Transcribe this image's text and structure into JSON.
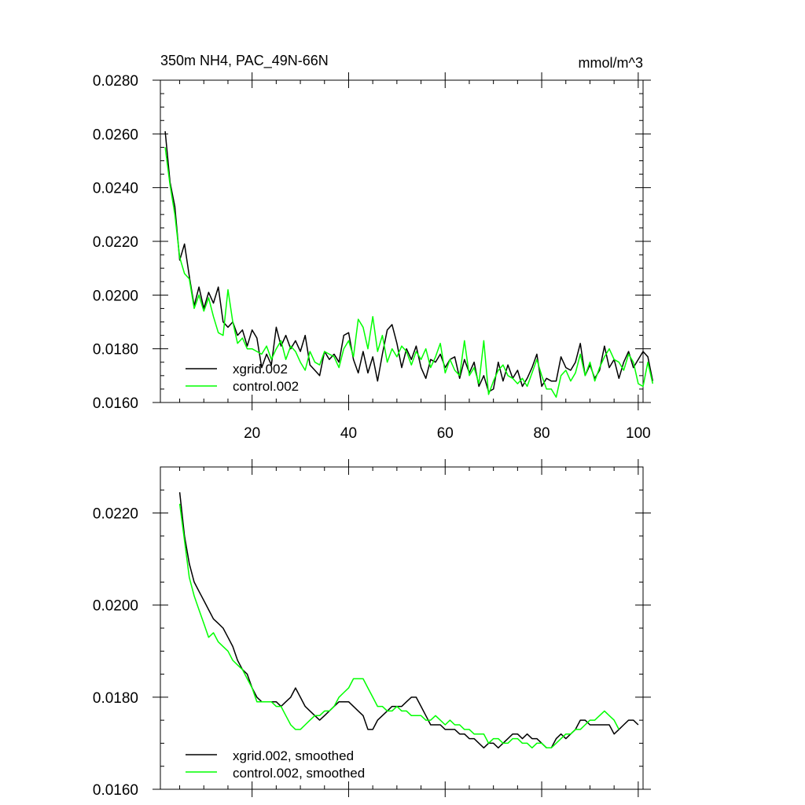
{
  "chart_data": [
    {
      "type": "line",
      "title_left": "350m NH4, PAC_49N-66N",
      "title_right": "mmol/m^3",
      "xlim": [
        1,
        101
      ],
      "ylim": [
        0.016,
        0.028
      ],
      "xticks": [
        20,
        40,
        60,
        80,
        100
      ],
      "xtick_labels": [
        "20",
        "40",
        "60",
        "80",
        "100"
      ],
      "yticks": [
        0.016,
        0.018,
        0.02,
        0.022,
        0.024,
        0.026,
        0.028
      ],
      "ytick_labels": [
        "0.0160",
        "0.0180",
        "0.0200",
        "0.0220",
        "0.0240",
        "0.0260",
        "0.0280"
      ],
      "legend_position": "bottom-left",
      "series": [
        {
          "name": "xgrid.002",
          "color": "#000000",
          "values": [
            0.0261,
            0.0242,
            0.0233,
            0.0213,
            0.0219,
            0.0207,
            0.0196,
            0.0203,
            0.0195,
            0.0201,
            0.0197,
            0.0203,
            0.019,
            0.0188,
            0.019,
            0.0185,
            0.0187,
            0.0181,
            0.0187,
            0.0184,
            0.0173,
            0.0178,
            0.0174,
            0.0188,
            0.0181,
            0.0185,
            0.018,
            0.0183,
            0.0179,
            0.0185,
            0.0174,
            0.0172,
            0.017,
            0.0179,
            0.0176,
            0.0178,
            0.0175,
            0.0185,
            0.0186,
            0.0176,
            0.0171,
            0.0179,
            0.0171,
            0.0177,
            0.0168,
            0.0178,
            0.0187,
            0.0189,
            0.0182,
            0.0173,
            0.018,
            0.0176,
            0.0181,
            0.0173,
            0.0169,
            0.0176,
            0.0175,
            0.0178,
            0.0173,
            0.0176,
            0.0177,
            0.0169,
            0.0176,
            0.0171,
            0.0175,
            0.0166,
            0.017,
            0.0164,
            0.0165,
            0.0175,
            0.0168,
            0.0174,
            0.0169,
            0.0172,
            0.0166,
            0.0169,
            0.0173,
            0.0178,
            0.0166,
            0.0169,
            0.0168,
            0.0168,
            0.0177,
            0.0173,
            0.0172,
            0.0175,
            0.0182,
            0.017,
            0.0174,
            0.0169,
            0.0172,
            0.0181,
            0.0173,
            0.0176,
            0.0169,
            0.0175,
            0.0179,
            0.0173,
            0.0176,
            0.0179,
            0.0177,
            0.0168
          ]
        },
        {
          "name": "control.002",
          "color": "#00ff00",
          "values": [
            0.0255,
            0.0241,
            0.023,
            0.0214,
            0.0208,
            0.0206,
            0.0195,
            0.02,
            0.0194,
            0.0199,
            0.0192,
            0.0186,
            0.0185,
            0.0202,
            0.019,
            0.0182,
            0.0184,
            0.018,
            0.018,
            0.0179,
            0.0178,
            0.0181,
            0.0176,
            0.018,
            0.0183,
            0.0176,
            0.0181,
            0.0179,
            0.0175,
            0.0172,
            0.0179,
            0.0175,
            0.0174,
            0.0179,
            0.0178,
            0.0177,
            0.0173,
            0.018,
            0.0183,
            0.0177,
            0.0191,
            0.0188,
            0.018,
            0.0192,
            0.0179,
            0.0185,
            0.0175,
            0.018,
            0.0177,
            0.0181,
            0.0179,
            0.0174,
            0.0179,
            0.0176,
            0.018,
            0.0173,
            0.0177,
            0.0182,
            0.0171,
            0.0176,
            0.0172,
            0.017,
            0.0183,
            0.017,
            0.0173,
            0.0167,
            0.0183,
            0.0163,
            0.0168,
            0.0172,
            0.0174,
            0.017,
            0.0169,
            0.0167,
            0.0169,
            0.0166,
            0.0171,
            0.0176,
            0.017,
            0.0165,
            0.0165,
            0.0162,
            0.017,
            0.0172,
            0.0168,
            0.0171,
            0.0178,
            0.017,
            0.0175,
            0.0168,
            0.0173,
            0.0177,
            0.018,
            0.0176,
            0.0175,
            0.0172,
            0.0178,
            0.0175,
            0.0167,
            0.0166,
            0.0175,
            0.0167
          ]
        }
      ]
    },
    {
      "type": "line",
      "xlim": [
        1,
        101
      ],
      "ylim": [
        0.016,
        0.023
      ],
      "xticks": [
        20,
        40,
        60,
        80,
        100
      ],
      "yticks": [
        0.016,
        0.018,
        0.02,
        0.022
      ],
      "ytick_labels": [
        "0.0160",
        "0.0180",
        "0.0200",
        "0.0220"
      ],
      "legend_position": "bottom-left",
      "series": [
        {
          "name": "xgrid.002, smoothed",
          "color": "#000000",
          "x_start": 5,
          "values": [
            0.02245,
            0.0215,
            0.0209,
            0.0205,
            0.0203,
            0.0201,
            0.0199,
            0.0197,
            0.0196,
            0.0195,
            0.0193,
            0.0191,
            0.0188,
            0.0186,
            0.0185,
            0.0182,
            0.018,
            0.0179,
            0.0179,
            0.0179,
            0.0179,
            0.0178,
            0.0179,
            0.018,
            0.0182,
            0.018,
            0.0178,
            0.0177,
            0.0176,
            0.0175,
            0.0176,
            0.0177,
            0.0178,
            0.0179,
            0.0179,
            0.0179,
            0.0178,
            0.0177,
            0.0176,
            0.0173,
            0.0173,
            0.0175,
            0.0176,
            0.0177,
            0.0178,
            0.0178,
            0.0178,
            0.0179,
            0.018,
            0.018,
            0.0178,
            0.0176,
            0.0174,
            0.0174,
            0.0174,
            0.0173,
            0.0173,
            0.0173,
            0.0172,
            0.0172,
            0.0171,
            0.0171,
            0.017,
            0.0169,
            0.017,
            0.017,
            0.0169,
            0.017,
            0.0171,
            0.0172,
            0.0172,
            0.0171,
            0.0172,
            0.0171,
            0.0171,
            0.017,
            0.0169,
            0.0169,
            0.0171,
            0.0172,
            0.0171,
            0.0172,
            0.0173,
            0.0175,
            0.0175,
            0.0174,
            0.0174,
            0.0174,
            0.0174,
            0.0174,
            0.0172,
            0.0173,
            0.0174,
            0.0175,
            0.0175,
            0.0174
          ]
        },
        {
          "name": "control.002, smoothed",
          "color": "#00ff00",
          "x_start": 5,
          "values": [
            0.0222,
            0.0214,
            0.0206,
            0.0202,
            0.0199,
            0.0196,
            0.0193,
            0.0194,
            0.0192,
            0.0191,
            0.019,
            0.0188,
            0.0187,
            0.0186,
            0.0184,
            0.0182,
            0.0179,
            0.0179,
            0.0179,
            0.0179,
            0.0178,
            0.0178,
            0.0176,
            0.0174,
            0.0173,
            0.0173,
            0.0174,
            0.0175,
            0.0176,
            0.0176,
            0.0177,
            0.0177,
            0.0178,
            0.018,
            0.0181,
            0.0182,
            0.0184,
            0.0184,
            0.0184,
            0.0182,
            0.018,
            0.0178,
            0.0178,
            0.0177,
            0.0177,
            0.0178,
            0.0177,
            0.0177,
            0.0176,
            0.0176,
            0.0176,
            0.0175,
            0.0175,
            0.0176,
            0.0175,
            0.0174,
            0.0175,
            0.0174,
            0.0174,
            0.0173,
            0.0173,
            0.0172,
            0.0172,
            0.0172,
            0.017,
            0.0171,
            0.0171,
            0.017,
            0.017,
            0.0171,
            0.0171,
            0.017,
            0.017,
            0.0169,
            0.017,
            0.017,
            0.0169,
            0.0169,
            0.017,
            0.0171,
            0.0172,
            0.0172,
            0.0173,
            0.0173,
            0.0174,
            0.0175,
            0.0175,
            0.0176,
            0.0177,
            0.0176,
            0.0175,
            0.0173
          ]
        }
      ]
    }
  ]
}
